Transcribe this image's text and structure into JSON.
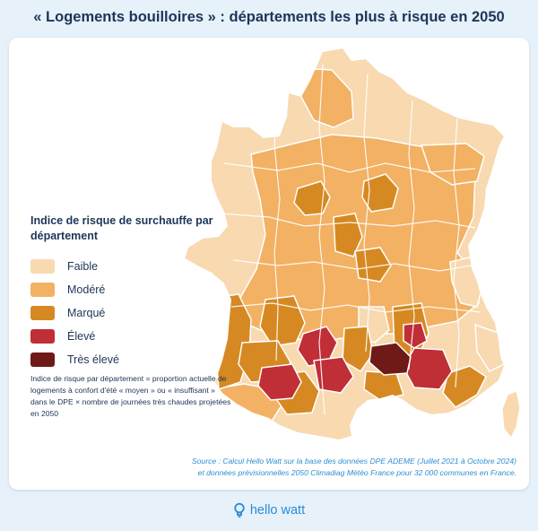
{
  "title": "« Logements bouilloires » : départements les plus à risque en 2050",
  "legend": {
    "title": "Indice de risque de surchauffe par département",
    "items": [
      {
        "label": "Faible",
        "color": "#f8d9b0"
      },
      {
        "label": "Modéré",
        "color": "#f2b163"
      },
      {
        "label": "Marqué",
        "color": "#d68922"
      },
      {
        "label": "Élevé",
        "color": "#c02e36"
      },
      {
        "label": "Très élevé",
        "color": "#6e1a17"
      }
    ]
  },
  "note": "Indice de risque par département = proportion actuelle de logements à confort d'été « moyen » ou « insuffisant » dans le DPE × nombre de journées très chaudes projetées en 2050",
  "source": {
    "line1": "Source : Calcul Hello Watt sur la base des données DPE ADEME (Juillet 2021 à Octobre 2024)",
    "line2": "et données prévisionnelles 2050 Climadiag Météo France pour 32 000 communes en France."
  },
  "brand": {
    "name": "hello watt",
    "icon": "lightbulb-icon"
  },
  "colors": {
    "background": "#e6f1fa",
    "title": "#1d3557",
    "source": "#2e8fd0",
    "brand": "#2a8bd6"
  }
}
